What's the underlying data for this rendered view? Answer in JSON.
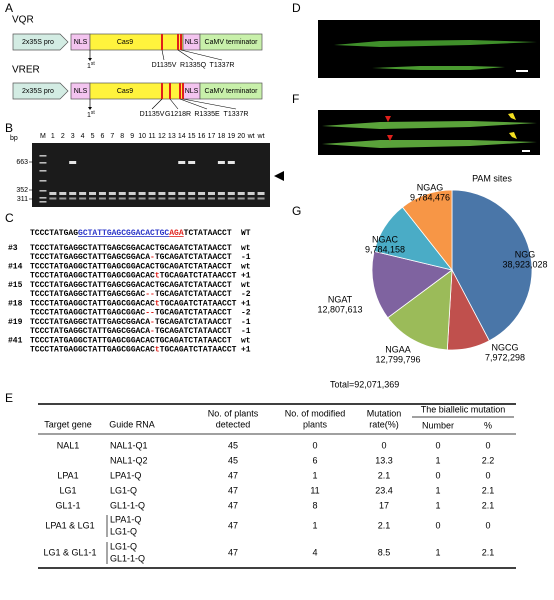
{
  "panel_a": {
    "label": "A",
    "constructs": [
      {
        "name": "VQR",
        "promoter": "2x35S pro",
        "nls_left": "NLS",
        "cas9": "Cas9",
        "nls_right": "NLS",
        "terminator": "CaMV terminator",
        "first": "1",
        "first_sup": "st",
        "mutations": [
          "D1135V",
          "R1335Q",
          "T1337R"
        ]
      },
      {
        "name": "VRER",
        "promoter": "2x35S pro",
        "nls_left": "NLS",
        "cas9": "Cas9",
        "nls_right": "NLS",
        "terminator": "CaMV terminator",
        "first": "1",
        "first_sup": "st",
        "mutations": [
          "D1135V",
          "G1218R",
          "R1335E",
          "T1337R"
        ]
      }
    ]
  },
  "panel_b": {
    "label": "B",
    "unit": "bp",
    "lanes": [
      "M",
      "1",
      "2",
      "3",
      "4",
      "5",
      "6",
      "7",
      "8",
      "9",
      "10",
      "11",
      "12",
      "13",
      "14",
      "15",
      "16",
      "17",
      "18",
      "19",
      "20",
      "wt",
      "wt"
    ],
    "sizes": [
      "663",
      "352",
      "311"
    ]
  },
  "panel_c": {
    "label": "C",
    "reference": {
      "segments": [
        "TCCCTATGAG",
        "GCTATTGAGCGGACACTGC",
        "AGA",
        "TCTATAACCT"
      ],
      "note": "WT"
    },
    "samples": [
      {
        "id": "#3",
        "lines": [
          {
            "segments": [
              "TCCCTATGAGGCTATTGAGCGGACACTGCAGATCTATAACCT"
            ],
            "note": "wt"
          },
          {
            "segments": [
              "TCCCTATGAGGCTATTGAGCGGACA",
              "-",
              "TGCAGATCTATAACCT"
            ],
            "note": "-1"
          }
        ]
      },
      {
        "id": "#14",
        "lines": [
          {
            "segments": [
              "TCCCTATGAGGCTATTGAGCGGACACTGCAGATCTATAACCT"
            ],
            "note": "wt"
          },
          {
            "segments": [
              "TCCCTATGAGGCTATTGAGCGGACAC",
              "t",
              "TGCAGATCTATAACCT"
            ],
            "note": "+1"
          }
        ]
      },
      {
        "id": "#15",
        "lines": [
          {
            "segments": [
              "TCCCTATGAGGCTATTGAGCGGACACTGCAGATCTATAACCT"
            ],
            "note": "wt"
          },
          {
            "segments": [
              "TCCCTATGAGGCTATTGAGCGGAC",
              "--",
              "TGCAGATCTATAACCT"
            ],
            "note": "-2"
          }
        ]
      },
      {
        "id": "#18",
        "lines": [
          {
            "segments": [
              "TCCCTATGAGGCTATTGAGCGGACAC",
              "t",
              "TGCAGATCTATAACCT"
            ],
            "note": "+1"
          },
          {
            "segments": [
              "TCCCTATGAGGCTATTGAGCGGAC",
              "--",
              "TGCAGATCTATAACCT"
            ],
            "note": "-2"
          }
        ]
      },
      {
        "id": "#19",
        "lines": [
          {
            "segments": [
              "TCCCTATGAGGCTATTGAGCGGACA",
              "-",
              "TGCAGATCTATAACCT"
            ],
            "note": "-1"
          },
          {
            "segments": [
              "TCCCTATGAGGCTATTGAGCGGACA",
              "-",
              "TGCAGATCTATAACCT"
            ],
            "note": "-1"
          }
        ]
      },
      {
        "id": "#41",
        "lines": [
          {
            "segments": [
              "TCCCTATGAGGCTATTGAGCGGACACTGCAGATCTATAACCT"
            ],
            "note": "wt"
          },
          {
            "segments": [
              "TCCCTATGAGGCTATTGAGCGGACAC",
              "t",
              "TGCAGATCTATAACCT"
            ],
            "note": "+1"
          }
        ]
      }
    ]
  },
  "panel_d": {
    "label": "D"
  },
  "panel_f": {
    "label": "F"
  },
  "panel_g": {
    "label": "G"
  },
  "chart_data": {
    "type": "pie",
    "title": "PAM sites",
    "categories": [
      "NGG",
      "NGCG",
      "NGAA",
      "NGAT",
      "NGAC",
      "NGAG"
    ],
    "values": [
      38923028,
      7972298,
      12799796,
      12807613,
      9784158,
      9784476
    ],
    "value_labels": [
      "38,923,028",
      "7,972,298",
      "12,799,796",
      "12,807,613",
      "9,784,158",
      "9,784,476"
    ],
    "colors": [
      "#4a76a8",
      "#c0504d",
      "#9bbb59",
      "#7f63a0",
      "#4aacc6",
      "#f79646"
    ],
    "annotation": "Total=92,071,369"
  },
  "panel_e": {
    "label": "E",
    "table": {
      "header": {
        "gene": "Target gene",
        "guide": "Guide RNA",
        "detected": [
          "No. of plants",
          "detected"
        ],
        "modified": [
          "No. of modified",
          "plants"
        ],
        "rate": [
          "Mutation",
          "rate(%)"
        ],
        "group": "The biallelic mutation",
        "number": "Number",
        "percent": "%"
      },
      "rows": [
        {
          "gene": "NAL1",
          "guides": [
            "NAL1-Q1"
          ],
          "detected": 45,
          "modified": 0,
          "rate": 0,
          "number": 0,
          "percent": 0
        },
        {
          "guides": [
            "NAL1-Q2"
          ],
          "detected": 45,
          "modified": 6,
          "rate": 13.3,
          "number": 1,
          "percent": 2.2
        },
        {
          "gene": "LPA1",
          "guides": [
            "LPA1-Q"
          ],
          "detected": 47,
          "modified": 1,
          "rate": 2.1,
          "number": 0,
          "percent": 0
        },
        {
          "gene": "LG1",
          "guides": [
            "LG1-Q"
          ],
          "detected": 47,
          "modified": 11,
          "rate": 23.4,
          "number": 1,
          "percent": 2.1
        },
        {
          "gene": "GL1-1",
          "guides": [
            "GL1-1-Q"
          ],
          "detected": 47,
          "modified": 8,
          "rate": 17,
          "number": 1,
          "percent": 2.1
        },
        {
          "gene": "LPA1 & LG1",
          "guides": [
            "LPA1-Q",
            "LG1-Q"
          ],
          "detected": 47,
          "modified": 1,
          "rate": 2.1,
          "number": 0,
          "percent": 0
        },
        {
          "gene": "LG1 & GL1-1",
          "guides": [
            "LG1-Q",
            "GL1-1-Q"
          ],
          "detected": 47,
          "modified": 4,
          "rate": 8.5,
          "number": 1,
          "percent": 2.1
        }
      ]
    }
  }
}
